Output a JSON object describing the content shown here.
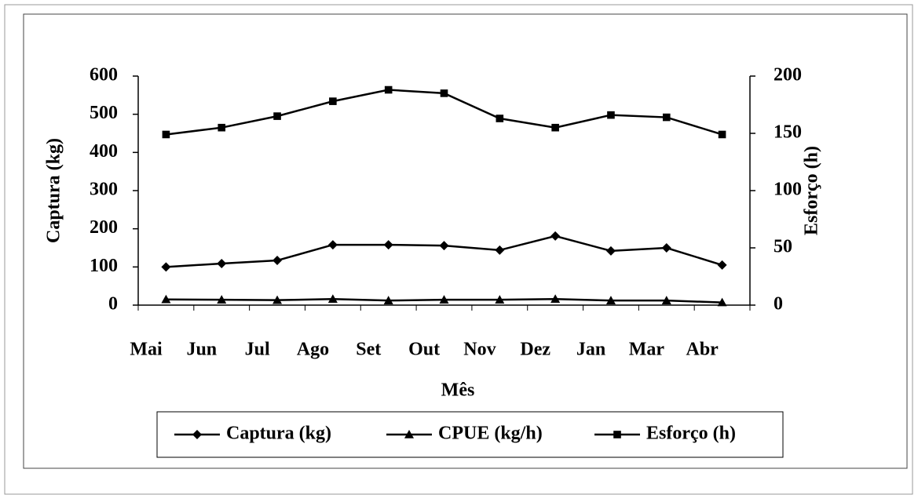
{
  "chart_data": {
    "type": "line",
    "x_label": "Mês",
    "y_label": "Captura (kg)",
    "y2_label": "Esforço (h)",
    "categories": [
      "Mai",
      "Jun",
      "Jul",
      "Ago",
      "Set",
      "Out",
      "Nov",
      "Dez",
      "Jan",
      "Mar",
      "Abr"
    ],
    "series": [
      {
        "name": "Captura (kg)",
        "color": "#000000",
        "marker": "diamond",
        "values": [
          100,
          109,
          117,
          158,
          158,
          156,
          144,
          181,
          142,
          150,
          105
        ]
      },
      {
        "name": "CPUE (kg/h)",
        "color": "#000000",
        "marker": "triangle",
        "values": [
          15,
          14,
          13,
          16,
          12,
          14,
          14,
          16,
          12,
          12,
          7
        ]
      },
      {
        "name": "Esforço (h)",
        "color": "#000000",
        "marker": "square",
        "axis": "y2",
        "values": [
          149,
          155,
          165,
          178,
          188,
          185,
          163,
          155,
          166,
          164,
          149
        ]
      }
    ],
    "ylim": [
      0,
      600
    ],
    "yticks": [
      0,
      100,
      200,
      300,
      400,
      500,
      600
    ],
    "y2lim": [
      0,
      200
    ],
    "y2ticks": [
      0,
      50,
      100,
      150,
      200
    ],
    "legend": "bottom"
  }
}
